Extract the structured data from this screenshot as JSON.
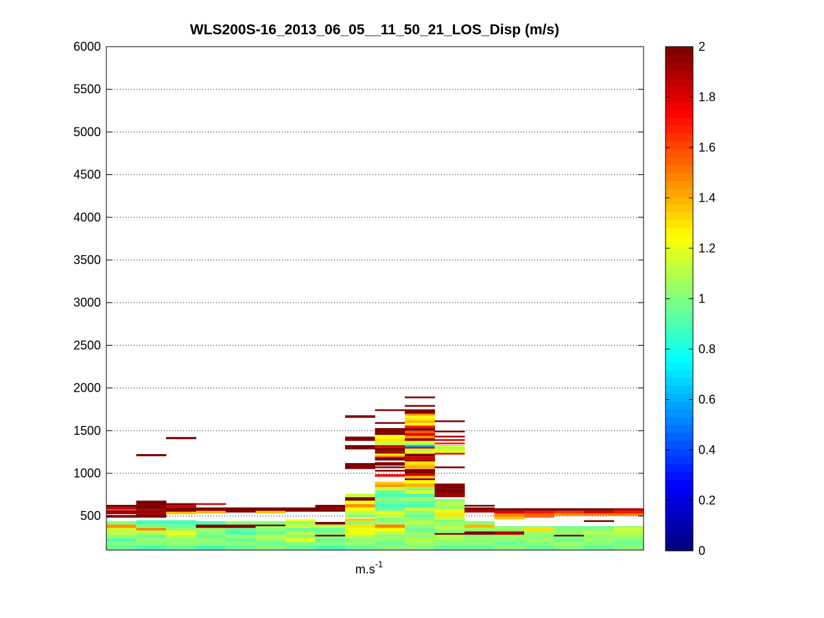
{
  "chart_data": {
    "type": "heatmap",
    "title": "WLS200S-16_2013_06_05__11_50_21_LOS_Disp (m/s)",
    "xlabel_base": "m.s",
    "xlabel_exp": "-1",
    "ylabel": "",
    "ylim": [
      100,
      6000
    ],
    "y_ticks": [
      500,
      1000,
      1500,
      2000,
      2500,
      3000,
      3500,
      4000,
      4500,
      5000,
      5500,
      6000
    ],
    "x_ticks": [],
    "grid": "y-dotted",
    "colorbar": {
      "colormap": "jet",
      "range": [
        0,
        2
      ],
      "ticks": [
        0,
        0.2,
        0.4,
        0.6,
        0.8,
        1,
        1.2,
        1.4,
        1.6,
        1.8,
        2
      ],
      "placement": "right"
    },
    "columns": 18,
    "cells": [
      [
        0,
        100,
        160,
        0.95
      ],
      [
        0,
        160,
        200,
        1.0
      ],
      [
        0,
        200,
        240,
        0.9
      ],
      [
        0,
        240,
        280,
        1.05
      ],
      [
        0,
        280,
        320,
        1.1
      ],
      [
        0,
        320,
        360,
        1.15
      ],
      [
        0,
        360,
        400,
        1.45
      ],
      [
        0,
        400,
        440,
        1.0
      ],
      [
        0,
        480,
        510,
        2.0
      ],
      [
        0,
        520,
        570,
        1.95
      ],
      [
        0,
        575,
        600,
        1.85
      ],
      [
        0,
        600,
        630,
        2.0
      ],
      [
        1,
        100,
        160,
        0.9
      ],
      [
        1,
        160,
        200,
        1.0
      ],
      [
        1,
        200,
        240,
        1.05
      ],
      [
        1,
        240,
        280,
        0.95
      ],
      [
        1,
        280,
        330,
        1.1
      ],
      [
        1,
        330,
        360,
        1.5
      ],
      [
        1,
        360,
        400,
        1.0
      ],
      [
        1,
        400,
        450,
        0.9
      ],
      [
        1,
        480,
        520,
        2.0
      ],
      [
        1,
        520,
        580,
        1.95
      ],
      [
        1,
        580,
        680,
        2.0
      ],
      [
        1,
        1200,
        1225,
        2.0
      ],
      [
        2,
        100,
        160,
        0.95
      ],
      [
        2,
        160,
        200,
        1.05
      ],
      [
        2,
        200,
        240,
        1.0
      ],
      [
        2,
        240,
        280,
        1.1
      ],
      [
        2,
        280,
        330,
        1.2
      ],
      [
        2,
        330,
        370,
        1.0
      ],
      [
        2,
        370,
        400,
        0.95
      ],
      [
        2,
        400,
        450,
        0.9
      ],
      [
        2,
        520,
        550,
        1.35
      ],
      [
        2,
        550,
        600,
        2.0
      ],
      [
        2,
        600,
        625,
        1.85
      ],
      [
        2,
        625,
        650,
        2.0
      ],
      [
        2,
        1400,
        1425,
        2.0
      ],
      [
        3,
        100,
        160,
        0.9
      ],
      [
        3,
        160,
        200,
        1.0
      ],
      [
        3,
        200,
        240,
        1.05
      ],
      [
        3,
        240,
        280,
        0.95
      ],
      [
        3,
        280,
        320,
        1.0
      ],
      [
        3,
        320,
        360,
        1.05
      ],
      [
        3,
        360,
        400,
        2.0
      ],
      [
        3,
        400,
        440,
        0.9
      ],
      [
        3,
        530,
        560,
        1.4
      ],
      [
        3,
        560,
        600,
        2.0
      ],
      [
        3,
        630,
        650,
        1.8
      ],
      [
        4,
        100,
        160,
        0.95
      ],
      [
        4,
        160,
        200,
        1.0
      ],
      [
        4,
        200,
        240,
        0.95
      ],
      [
        4,
        240,
        280,
        1.05
      ],
      [
        4,
        280,
        320,
        0.9
      ],
      [
        4,
        320,
        360,
        0.95
      ],
      [
        4,
        360,
        400,
        2.0
      ],
      [
        4,
        400,
        440,
        1.0
      ],
      [
        4,
        540,
        600,
        2.0
      ],
      [
        5,
        100,
        160,
        1.0
      ],
      [
        5,
        160,
        200,
        0.95
      ],
      [
        5,
        200,
        240,
        1.05
      ],
      [
        5,
        240,
        280,
        1.1
      ],
      [
        5,
        280,
        320,
        0.95
      ],
      [
        5,
        320,
        360,
        1.0
      ],
      [
        5,
        360,
        400,
        1.05
      ],
      [
        5,
        380,
        400,
        2.0
      ],
      [
        5,
        400,
        440,
        1.0
      ],
      [
        5,
        530,
        560,
        1.35
      ],
      [
        5,
        560,
        600,
        2.0
      ],
      [
        6,
        100,
        160,
        0.95
      ],
      [
        6,
        160,
        200,
        1.0
      ],
      [
        6,
        200,
        240,
        1.2
      ],
      [
        6,
        240,
        280,
        1.0
      ],
      [
        6,
        280,
        320,
        1.1
      ],
      [
        6,
        320,
        360,
        0.95
      ],
      [
        6,
        360,
        400,
        1.15
      ],
      [
        6,
        400,
        440,
        1.05
      ],
      [
        6,
        440,
        460,
        1.25
      ],
      [
        6,
        550,
        600,
        2.0
      ],
      [
        7,
        100,
        160,
        0.9
      ],
      [
        7,
        160,
        200,
        1.0
      ],
      [
        7,
        200,
        240,
        0.95
      ],
      [
        7,
        240,
        280,
        1.05
      ],
      [
        7,
        260,
        280,
        2.0
      ],
      [
        7,
        280,
        320,
        1.0
      ],
      [
        7,
        320,
        360,
        0.95
      ],
      [
        7,
        360,
        400,
        1.1
      ],
      [
        7,
        400,
        430,
        2.0
      ],
      [
        7,
        550,
        630,
        2.0
      ],
      [
        8,
        100,
        160,
        0.95
      ],
      [
        8,
        160,
        200,
        1.05
      ],
      [
        8,
        200,
        240,
        1.0
      ],
      [
        8,
        240,
        280,
        1.1
      ],
      [
        8,
        280,
        320,
        1.25
      ],
      [
        8,
        320,
        360,
        1.2
      ],
      [
        8,
        360,
        400,
        1.3
      ],
      [
        8,
        400,
        440,
        1.0
      ],
      [
        8,
        440,
        470,
        1.35
      ],
      [
        8,
        480,
        520,
        1.0
      ],
      [
        8,
        520,
        560,
        1.1
      ],
      [
        8,
        560,
        600,
        1.25
      ],
      [
        8,
        600,
        640,
        1.45
      ],
      [
        8,
        640,
        680,
        1.2
      ],
      [
        8,
        680,
        720,
        2.0
      ],
      [
        8,
        720,
        760,
        1.15
      ],
      [
        8,
        1050,
        1120,
        2.0
      ],
      [
        8,
        1280,
        1330,
        2.0
      ],
      [
        8,
        1380,
        1430,
        2.0
      ],
      [
        8,
        1650,
        1680,
        2.0
      ],
      [
        9,
        100,
        160,
        1.0
      ],
      [
        9,
        160,
        200,
        0.95
      ],
      [
        9,
        200,
        240,
        1.05
      ],
      [
        9,
        240,
        280,
        1.0
      ],
      [
        9,
        280,
        320,
        1.1
      ],
      [
        9,
        320,
        360,
        1.25
      ],
      [
        9,
        360,
        400,
        1.5
      ],
      [
        9,
        400,
        440,
        1.05
      ],
      [
        9,
        440,
        480,
        1.0
      ],
      [
        9,
        480,
        520,
        1.1
      ],
      [
        9,
        520,
        560,
        1.2
      ],
      [
        9,
        560,
        600,
        0.95
      ],
      [
        9,
        600,
        640,
        0.9
      ],
      [
        9,
        640,
        680,
        0.95
      ],
      [
        9,
        680,
        720,
        1.0
      ],
      [
        9,
        720,
        760,
        0.9
      ],
      [
        9,
        760,
        800,
        0.95
      ],
      [
        9,
        800,
        840,
        1.15
      ],
      [
        9,
        840,
        870,
        1.45
      ],
      [
        9,
        870,
        900,
        1.35
      ],
      [
        9,
        960,
        990,
        1.75
      ],
      [
        9,
        1020,
        1040,
        2.0
      ],
      [
        9,
        1060,
        1080,
        2.0
      ],
      [
        9,
        1090,
        1130,
        2.0
      ],
      [
        9,
        1150,
        1190,
        2.0
      ],
      [
        9,
        1190,
        1210,
        1.5
      ],
      [
        9,
        1210,
        1230,
        1.25
      ],
      [
        9,
        1230,
        1260,
        1.9
      ],
      [
        9,
        1260,
        1300,
        2.0
      ],
      [
        9,
        1300,
        1330,
        1.85
      ],
      [
        9,
        1330,
        1370,
        1.15
      ],
      [
        9,
        1370,
        1410,
        1.3
      ],
      [
        9,
        1410,
        1450,
        1.2
      ],
      [
        9,
        1450,
        1530,
        2.0
      ],
      [
        9,
        1580,
        1600,
        2.0
      ],
      [
        9,
        1730,
        1750,
        2.0
      ],
      [
        10,
        100,
        160,
        1.0
      ],
      [
        10,
        160,
        200,
        1.05
      ],
      [
        10,
        200,
        240,
        1.1
      ],
      [
        10,
        240,
        280,
        1.0
      ],
      [
        10,
        280,
        320,
        1.05
      ],
      [
        10,
        320,
        360,
        0.95
      ],
      [
        10,
        360,
        400,
        1.0
      ],
      [
        10,
        400,
        440,
        1.1
      ],
      [
        10,
        440,
        480,
        1.05
      ],
      [
        10,
        480,
        520,
        0.95
      ],
      [
        10,
        520,
        560,
        1.0
      ],
      [
        10,
        560,
        600,
        1.15
      ],
      [
        10,
        600,
        640,
        0.9
      ],
      [
        10,
        640,
        680,
        0.95
      ],
      [
        10,
        680,
        720,
        1.05
      ],
      [
        10,
        720,
        760,
        0.9
      ],
      [
        10,
        760,
        800,
        1.2
      ],
      [
        10,
        800,
        840,
        1.0
      ],
      [
        10,
        840,
        880,
        1.4
      ],
      [
        10,
        880,
        920,
        1.25
      ],
      [
        10,
        920,
        940,
        2.0
      ],
      [
        10,
        940,
        970,
        1.35
      ],
      [
        10,
        970,
        1000,
        1.8
      ],
      [
        10,
        1000,
        1050,
        2.0
      ],
      [
        10,
        1050,
        1100,
        1.4
      ],
      [
        10,
        1100,
        1140,
        1.3
      ],
      [
        10,
        1140,
        1160,
        2.0
      ],
      [
        10,
        1160,
        1200,
        1.85
      ],
      [
        10,
        1200,
        1230,
        2.0
      ],
      [
        10,
        1230,
        1260,
        1.2
      ],
      [
        10,
        1260,
        1290,
        1.1
      ],
      [
        10,
        1290,
        1310,
        1.8
      ],
      [
        10,
        1310,
        1330,
        0.6
      ],
      [
        10,
        1330,
        1350,
        1.05
      ],
      [
        10,
        1350,
        1380,
        1.15
      ],
      [
        10,
        1380,
        1410,
        1.95
      ],
      [
        10,
        1410,
        1440,
        1.45
      ],
      [
        10,
        1440,
        1470,
        1.8
      ],
      [
        10,
        1470,
        1500,
        1.6
      ],
      [
        10,
        1500,
        1530,
        2.0
      ],
      [
        10,
        1530,
        1560,
        1.7
      ],
      [
        10,
        1560,
        1590,
        1.25
      ],
      [
        10,
        1590,
        1620,
        1.4
      ],
      [
        10,
        1620,
        1650,
        1.3
      ],
      [
        10,
        1650,
        1680,
        1.2
      ],
      [
        10,
        1680,
        1720,
        1.5
      ],
      [
        10,
        1700,
        1750,
        2.0
      ],
      [
        10,
        1780,
        1800,
        2.0
      ],
      [
        10,
        1880,
        1900,
        2.0
      ],
      [
        11,
        100,
        160,
        0.95
      ],
      [
        11,
        160,
        200,
        1.0
      ],
      [
        11,
        200,
        240,
        1.05
      ],
      [
        11,
        240,
        280,
        1.1
      ],
      [
        11,
        280,
        300,
        2.0
      ],
      [
        11,
        300,
        340,
        1.0
      ],
      [
        11,
        340,
        380,
        1.1
      ],
      [
        11,
        380,
        420,
        1.05
      ],
      [
        11,
        420,
        460,
        1.0
      ],
      [
        11,
        460,
        500,
        1.15
      ],
      [
        11,
        500,
        540,
        1.3
      ],
      [
        11,
        540,
        580,
        1.2
      ],
      [
        11,
        580,
        620,
        1.05
      ],
      [
        11,
        620,
        660,
        1.1
      ],
      [
        11,
        660,
        700,
        1.0
      ],
      [
        11,
        720,
        760,
        1.95
      ],
      [
        11,
        760,
        820,
        2.0
      ],
      [
        11,
        820,
        880,
        2.0
      ],
      [
        11,
        1060,
        1080,
        2.0
      ],
      [
        11,
        1220,
        1240,
        1.8
      ],
      [
        11,
        1240,
        1280,
        1.2
      ],
      [
        11,
        1280,
        1330,
        1.1
      ],
      [
        11,
        1340,
        1360,
        1.7
      ],
      [
        11,
        1380,
        1400,
        1.85
      ],
      [
        11,
        1420,
        1440,
        1.9
      ],
      [
        11,
        1480,
        1500,
        2.0
      ],
      [
        11,
        1600,
        1620,
        2.0
      ],
      [
        12,
        100,
        160,
        0.95
      ],
      [
        12,
        160,
        200,
        1.0
      ],
      [
        12,
        200,
        240,
        1.05
      ],
      [
        12,
        240,
        280,
        1.0
      ],
      [
        12,
        280,
        320,
        2.0
      ],
      [
        12,
        320,
        360,
        1.05
      ],
      [
        12,
        360,
        400,
        1.4
      ],
      [
        12,
        400,
        440,
        1.0
      ],
      [
        12,
        540,
        570,
        1.9
      ],
      [
        12,
        570,
        600,
        2.0
      ],
      [
        12,
        610,
        630,
        2.0
      ],
      [
        13,
        100,
        160,
        1.0
      ],
      [
        13,
        160,
        200,
        0.95
      ],
      [
        13,
        200,
        240,
        1.0
      ],
      [
        13,
        240,
        280,
        1.05
      ],
      [
        13,
        280,
        320,
        1.9
      ],
      [
        13,
        320,
        360,
        1.05
      ],
      [
        13,
        360,
        380,
        1.0
      ],
      [
        13,
        460,
        490,
        1.35
      ],
      [
        13,
        490,
        530,
        1.5
      ],
      [
        13,
        530,
        560,
        1.8
      ],
      [
        13,
        560,
        590,
        2.0
      ],
      [
        14,
        100,
        160,
        0.95
      ],
      [
        14,
        160,
        200,
        1.0
      ],
      [
        14,
        200,
        240,
        1.05
      ],
      [
        14,
        240,
        280,
        1.0
      ],
      [
        14,
        280,
        320,
        1.05
      ],
      [
        14,
        320,
        360,
        1.3
      ],
      [
        14,
        360,
        380,
        1.0
      ],
      [
        14,
        480,
        530,
        1.55
      ],
      [
        14,
        530,
        560,
        1.7
      ],
      [
        14,
        560,
        590,
        2.0
      ],
      [
        15,
        100,
        160,
        1.0
      ],
      [
        15,
        160,
        200,
        1.05
      ],
      [
        15,
        200,
        240,
        0.95
      ],
      [
        15,
        240,
        280,
        1.0
      ],
      [
        15,
        260,
        280,
        2.0
      ],
      [
        15,
        280,
        320,
        1.05
      ],
      [
        15,
        320,
        360,
        1.0
      ],
      [
        15,
        360,
        380,
        0.95
      ],
      [
        15,
        500,
        530,
        1.45
      ],
      [
        15,
        530,
        560,
        1.65
      ],
      [
        15,
        560,
        590,
        2.0
      ],
      [
        16,
        100,
        160,
        0.95
      ],
      [
        16,
        160,
        200,
        1.0
      ],
      [
        16,
        200,
        240,
        1.05
      ],
      [
        16,
        240,
        280,
        1.0
      ],
      [
        16,
        280,
        320,
        1.1
      ],
      [
        16,
        320,
        360,
        1.0
      ],
      [
        16,
        360,
        380,
        0.95
      ],
      [
        16,
        430,
        450,
        2.0
      ],
      [
        16,
        500,
        530,
        1.5
      ],
      [
        16,
        530,
        560,
        1.8
      ],
      [
        16,
        560,
        590,
        2.0
      ],
      [
        17,
        100,
        160,
        1.0
      ],
      [
        17,
        160,
        200,
        0.95
      ],
      [
        17,
        200,
        240,
        1.0
      ],
      [
        17,
        240,
        280,
        1.05
      ],
      [
        17,
        280,
        320,
        1.1
      ],
      [
        17,
        320,
        360,
        1.15
      ],
      [
        17,
        360,
        380,
        1.05
      ],
      [
        17,
        500,
        530,
        1.5
      ],
      [
        17,
        530,
        560,
        1.7
      ],
      [
        17,
        560,
        590,
        1.9
      ]
    ]
  }
}
